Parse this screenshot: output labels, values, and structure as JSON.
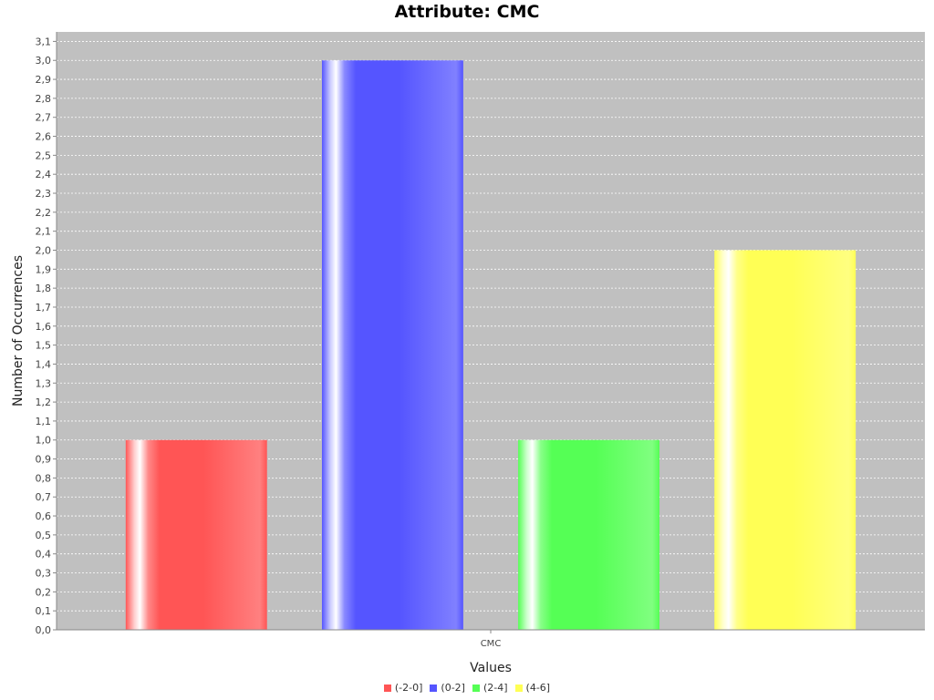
{
  "chart_data": {
    "type": "bar",
    "title": "Attribute: CMC",
    "xlabel": "Values",
    "ylabel": "Number of Occurrences",
    "categories": [
      "CMC"
    ],
    "series": [
      {
        "name": "(-2-0]",
        "values": [
          1.0
        ],
        "color": "#ff5555"
      },
      {
        "name": "(0-2]",
        "values": [
          3.0
        ],
        "color": "#5555ff"
      },
      {
        "name": "(2-4]",
        "values": [
          1.0
        ],
        "color": "#55ff55"
      },
      {
        "name": "(4-6]",
        "values": [
          2.0
        ],
        "color": "#ffff55"
      }
    ],
    "ylim": [
      0,
      3.15
    ],
    "y_tick_step": 0.1,
    "y_tick_labels": [
      "0,0",
      "0,1",
      "0,2",
      "0,3",
      "0,4",
      "0,5",
      "0,6",
      "0,7",
      "0,8",
      "0,9",
      "1,0",
      "1,1",
      "1,2",
      "1,3",
      "1,4",
      "1,5",
      "1,6",
      "1,7",
      "1,8",
      "1,9",
      "2,0",
      "2,1",
      "2,2",
      "2,3",
      "2,4",
      "2,5",
      "2,6",
      "2,7",
      "2,8",
      "2,9",
      "3,0",
      "3,1"
    ],
    "grid": true,
    "legend_position": "bottom",
    "plot_background": "#c0c0c0"
  }
}
